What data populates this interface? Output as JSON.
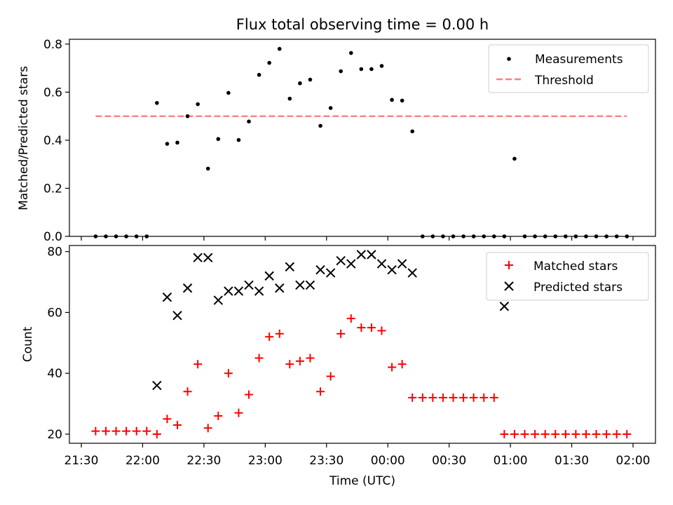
{
  "title": "Flux total observing time = 0.00 h",
  "colors": {
    "measurement": "#000000",
    "threshold": "#ff7f7f",
    "matched": "#ff0000",
    "predicted": "#000000"
  },
  "chart_data": [
    {
      "type": "scatter",
      "ylabel": "Matched/Predicted stars",
      "ylim": [
        0,
        0.82
      ],
      "yticks": [
        0.0,
        0.2,
        0.4,
        0.6,
        0.8
      ],
      "ytick_labels": [
        "0.0",
        "0.2",
        "0.4",
        "0.6",
        "0.8"
      ],
      "legend_position": "upper right",
      "series": [
        {
          "name": "Measurements",
          "marker": "dot",
          "x": [
            "21:37",
            "21:42",
            "21:47",
            "21:52",
            "21:57",
            "22:02",
            "22:07",
            "22:12",
            "22:17",
            "22:22",
            "22:27",
            "22:32",
            "22:37",
            "22:42",
            "22:47",
            "22:52",
            "22:57",
            "23:02",
            "23:07",
            "23:12",
            "23:17",
            "23:22",
            "23:27",
            "23:32",
            "23:37",
            "23:42",
            "23:47",
            "23:52",
            "23:57",
            "00:02",
            "00:07",
            "00:12",
            "00:17",
            "00:22",
            "00:27",
            "00:32",
            "00:37",
            "00:42",
            "00:47",
            "00:52",
            "00:57",
            "01:02",
            "01:07",
            "01:12",
            "01:17",
            "01:22",
            "01:27",
            "01:32",
            "01:37",
            "01:42",
            "01:47",
            "01:52",
            "01:57"
          ],
          "y": [
            0,
            0,
            0,
            0,
            0,
            0,
            0.555,
            0.385,
            0.39,
            0.5,
            0.55,
            0.282,
            0.405,
            0.597,
            0.401,
            0.478,
            0.672,
            0.722,
            0.78,
            0.573,
            0.637,
            0.652,
            0.46,
            0.534,
            0.687,
            0.763,
            0.696,
            0.696,
            0.709,
            0.568,
            0.565,
            0.437,
            0,
            0,
            0,
            0,
            0,
            0,
            0,
            0,
            0,
            0.323,
            0,
            0,
            0,
            0,
            0,
            0,
            0,
            0,
            0,
            0,
            0
          ]
        },
        {
          "name": "Threshold",
          "marker": "dashed-line",
          "x": [
            "21:37",
            "01:57"
          ],
          "y": [
            0.5,
            0.5
          ]
        }
      ]
    },
    {
      "type": "scatter",
      "ylabel": "Count",
      "xlabel": "Time (UTC)",
      "ylim": [
        17,
        82
      ],
      "yticks": [
        20,
        40,
        60,
        80
      ],
      "ytick_labels": [
        "20",
        "40",
        "60",
        "80"
      ],
      "xticks": [
        "21:30",
        "22:00",
        "22:30",
        "23:00",
        "23:30",
        "00:00",
        "00:30",
        "01:00",
        "01:30",
        "02:00"
      ],
      "legend_position": "upper right",
      "series": [
        {
          "name": "Matched stars",
          "marker": "plus",
          "x": [
            "21:37",
            "21:42",
            "21:47",
            "21:52",
            "21:57",
            "22:02",
            "22:07",
            "22:12",
            "22:17",
            "22:22",
            "22:27",
            "22:32",
            "22:37",
            "22:42",
            "22:47",
            "22:52",
            "22:57",
            "23:02",
            "23:07",
            "23:12",
            "23:17",
            "23:22",
            "23:27",
            "23:32",
            "23:37",
            "23:42",
            "23:47",
            "23:52",
            "23:57",
            "00:02",
            "00:07",
            "00:12",
            "00:17",
            "00:22",
            "00:27",
            "00:32",
            "00:37",
            "00:42",
            "00:47",
            "00:52",
            "00:57",
            "01:02",
            "01:07",
            "01:12",
            "01:17",
            "01:22",
            "01:27",
            "01:32",
            "01:37",
            "01:42",
            "01:47",
            "01:52",
            "01:57"
          ],
          "y": [
            21,
            21,
            21,
            21,
            21,
            21,
            20,
            25,
            23,
            34,
            43,
            22,
            26,
            40,
            27,
            33,
            45,
            52,
            53,
            43,
            44,
            45,
            34,
            39,
            53,
            58,
            55,
            55,
            54,
            42,
            43,
            32,
            32,
            32,
            32,
            32,
            32,
            32,
            32,
            32,
            20,
            20,
            20,
            20,
            20,
            20,
            20,
            20,
            20,
            20,
            20,
            20,
            20
          ]
        },
        {
          "name": "Predicted stars",
          "marker": "x",
          "x": [
            "22:07",
            "22:12",
            "22:17",
            "22:22",
            "22:27",
            "22:32",
            "22:37",
            "22:42",
            "22:47",
            "22:52",
            "22:57",
            "23:02",
            "23:07",
            "23:12",
            "23:17",
            "23:22",
            "23:27",
            "23:32",
            "23:37",
            "23:42",
            "23:47",
            "23:52",
            "23:57",
            "00:02",
            "00:07",
            "00:12",
            "00:57"
          ],
          "y": [
            36,
            65,
            59,
            68,
            78,
            78,
            64,
            67,
            67,
            69,
            67,
            72,
            68,
            75,
            69,
            69,
            74,
            73,
            77,
            76,
            79,
            79,
            76,
            74,
            76,
            73,
            62
          ]
        }
      ]
    }
  ]
}
